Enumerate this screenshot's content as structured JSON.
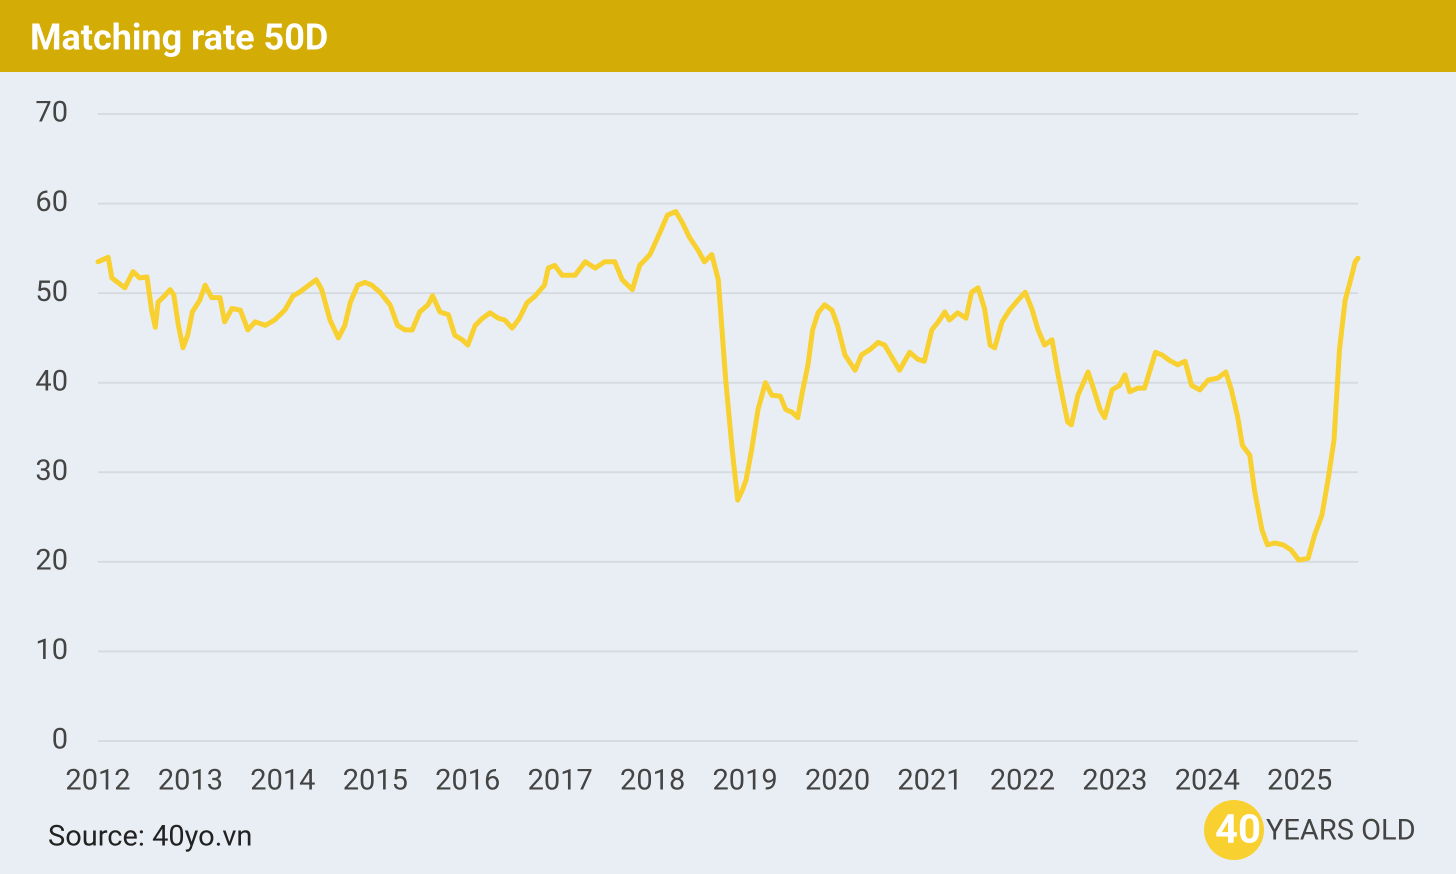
{
  "chart_data": {
    "type": "line",
    "title": "Matching rate 50D",
    "source": "Source: 40yo.vn",
    "logo": {
      "number": "40",
      "text": "YEARS OLD"
    },
    "x": [
      2012.0,
      2012.11,
      2012.15,
      2012.29,
      2012.38,
      2012.45,
      2012.53,
      2012.58,
      2012.62,
      2012.65,
      2012.72,
      2012.78,
      2012.82,
      2012.87,
      2012.92,
      2012.97,
      2013.02,
      2013.1,
      2013.16,
      2013.23,
      2013.32,
      2013.37,
      2013.45,
      2013.54,
      2013.62,
      2013.7,
      2013.81,
      2013.91,
      2014.02,
      2014.11,
      2014.18,
      2014.27,
      2014.36,
      2014.42,
      2014.51,
      2014.6,
      2014.67,
      2014.73,
      2014.81,
      2014.89,
      2014.96,
      2015.05,
      2015.16,
      2015.24,
      2015.32,
      2015.4,
      2015.48,
      2015.57,
      2015.62,
      2015.7,
      2015.79,
      2015.86,
      2015.94,
      2016.0,
      2016.08,
      2016.16,
      2016.24,
      2016.33,
      2016.4,
      2016.48,
      2016.56,
      2016.64,
      2016.73,
      2016.83,
      2016.87,
      2016.94,
      2017.02,
      2017.16,
      2017.27,
      2017.38,
      2017.48,
      2017.59,
      2017.67,
      2017.78,
      2017.86,
      2017.97,
      2018.08,
      2018.16,
      2018.25,
      2018.32,
      2018.4,
      2018.49,
      2018.56,
      2018.64,
      2018.71,
      2018.75,
      2018.79,
      2018.86,
      2018.92,
      2018.97,
      2019.01,
      2019.07,
      2019.14,
      2019.22,
      2019.29,
      2019.38,
      2019.44,
      2019.51,
      2019.57,
      2019.62,
      2019.68,
      2019.73,
      2019.79,
      2019.86,
      2019.94,
      2020.0,
      2020.08,
      2020.19,
      2020.26,
      2020.35,
      2020.44,
      2020.51,
      2020.59,
      2020.67,
      2020.78,
      2020.87,
      2020.94,
      2021.02,
      2021.09,
      2021.16,
      2021.21,
      2021.3,
      2021.39,
      2021.45,
      2021.52,
      2021.59,
      2021.65,
      2021.7,
      2021.78,
      2021.86,
      2021.95,
      2022.03,
      2022.1,
      2022.17,
      2022.24,
      2022.32,
      2022.38,
      2022.44,
      2022.49,
      2022.53,
      2022.6,
      2022.71,
      2022.78,
      2022.84,
      2022.89,
      2022.97,
      2023.05,
      2023.11,
      2023.16,
      2023.25,
      2023.32,
      2023.38,
      2023.44,
      2023.51,
      2023.59,
      2023.68,
      2023.76,
      2023.83,
      2023.92,
      2024.01,
      2024.11,
      2024.2,
      2024.26,
      2024.33,
      2024.38,
      2024.46,
      2024.51,
      2024.59,
      2024.65,
      2024.73,
      2024.82,
      2024.91,
      2024.99,
      2025.09,
      2025.16,
      2025.24,
      2025.31,
      2025.37,
      2025.43,
      2025.49,
      2025.54,
      2025.6,
      2025.63
    ],
    "series": [
      {
        "name": "Matching rate 50D",
        "color": "#f8d030",
        "values": [
          53.5,
          54,
          51.7,
          50.6,
          52.4,
          51.7,
          51.8,
          48.1,
          46.2,
          49,
          49.7,
          50.4,
          49.8,
          46.4,
          43.9,
          45.3,
          47.9,
          49.2,
          50.9,
          49.5,
          49.5,
          46.8,
          48.3,
          48.1,
          45.9,
          46.8,
          46.4,
          47,
          48.1,
          49.7,
          50.1,
          50.8,
          51.5,
          50.4,
          47,
          45,
          46.4,
          49,
          50.9,
          51.2,
          50.9,
          50.1,
          48.7,
          46.4,
          45.9,
          45.9,
          47.9,
          48.7,
          49.7,
          47.9,
          47.6,
          45.3,
          44.8,
          44.2,
          46.4,
          47.2,
          47.8,
          47.2,
          47,
          46.1,
          47.2,
          48.9,
          49.7,
          50.9,
          52.8,
          53.1,
          52,
          52,
          53.5,
          52.8,
          53.5,
          53.5,
          51.5,
          50.4,
          53.1,
          54.3,
          56.8,
          58.7,
          59.1,
          57.9,
          56.2,
          54.8,
          53.5,
          54.3,
          51.5,
          45.9,
          40.3,
          32.5,
          26.9,
          28,
          29.1,
          32.5,
          37,
          40,
          38.6,
          38.5,
          37,
          36.7,
          36.1,
          39,
          42,
          45.9,
          47.8,
          48.7,
          48.1,
          46.4,
          43.1,
          41.4,
          43.1,
          43.7,
          44.5,
          44.2,
          42.8,
          41.4,
          43.4,
          42.6,
          42.4,
          45.9,
          46.8,
          47.9,
          47,
          47.8,
          47.2,
          50.1,
          50.6,
          48.3,
          44.2,
          43.9,
          46.8,
          48.1,
          49.2,
          50.1,
          48.3,
          45.9,
          44.2,
          44.8,
          41.2,
          38.1,
          35.6,
          35.3,
          38.6,
          41.2,
          39,
          37,
          36.1,
          39.2,
          39.7,
          40.9,
          39,
          39.4,
          39.4,
          41.4,
          43.4,
          43.1,
          42.5,
          42,
          42.4,
          39.7,
          39.2,
          40.3,
          40.5,
          41.2,
          39.2,
          36.1,
          33,
          31.9,
          28,
          23.6,
          21.9,
          22.1,
          21.9,
          21.3,
          20.2,
          20.4,
          23,
          25.2,
          29.4,
          33.6,
          43.7,
          49.2,
          51.1,
          53.5,
          53.9
        ]
      }
    ],
    "xlim": [
      2012,
      2025.63
    ],
    "xticks": [
      2012,
      2013,
      2014,
      2015,
      2016,
      2017,
      2018,
      2019,
      2020,
      2021,
      2022,
      2023,
      2024,
      2025
    ],
    "ylim": [
      0,
      70
    ],
    "yticks": [
      0,
      10,
      20,
      30,
      40,
      50,
      60,
      70
    ],
    "grid": true
  }
}
